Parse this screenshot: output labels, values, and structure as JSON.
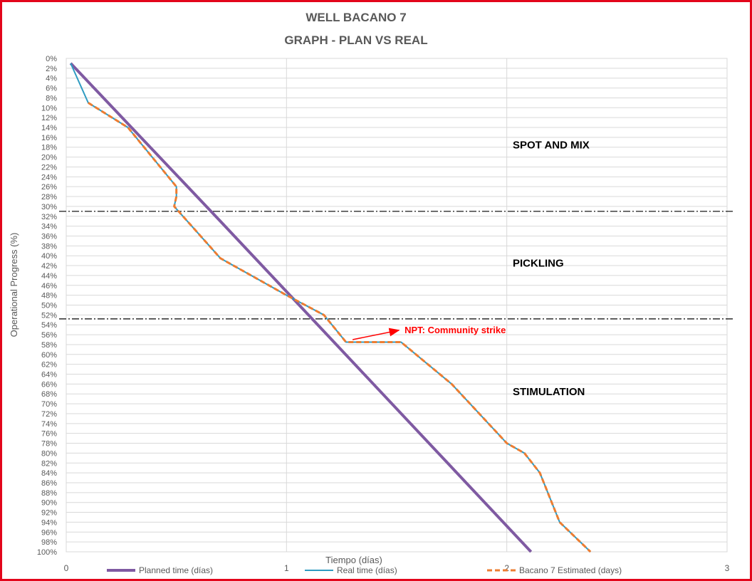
{
  "chart_data": {
    "type": "line",
    "title": [
      "WELL BACANO 7",
      "GRAPH  - PLAN VS REAL"
    ],
    "xlabel": "Tiempo (días)",
    "ylabel": "Operational Progress (%)",
    "xlim": [
      0,
      3
    ],
    "ylim": [
      0,
      100
    ],
    "y_inverted": true,
    "x_ticks": [
      "0",
      "1",
      "2",
      "3"
    ],
    "y_ticks": [
      "0%",
      "2%",
      "4%",
      "6%",
      "8%",
      "10%",
      "12%",
      "14%",
      "16%",
      "18%",
      "20%",
      "22%",
      "24%",
      "26%",
      "28%",
      "30%",
      "32%",
      "34%",
      "36%",
      "38%",
      "40%",
      "42%",
      "44%",
      "46%",
      "48%",
      "50%",
      "52%",
      "54%",
      "56%",
      "58%",
      "60%",
      "62%",
      "64%",
      "66%",
      "68%",
      "70%",
      "72%",
      "74%",
      "76%",
      "78%",
      "80%",
      "82%",
      "84%",
      "86%",
      "88%",
      "90%",
      "92%",
      "94%",
      "96%",
      "98%",
      "100%"
    ],
    "grid": true,
    "legend_position": "bottom",
    "series": [
      {
        "name": "Planned time (días)",
        "color": "#7f5aa2",
        "style": "solid",
        "x": [
          0.02,
          0.7,
          2.11
        ],
        "y": [
          1,
          33,
          100
        ]
      },
      {
        "name": "Real time (días)",
        "color": "#2f9bc1",
        "style": "solid",
        "x": [
          0.02,
          0.1,
          0.28,
          0.5,
          0.5,
          0.49,
          0.7,
          1.0,
          1.17,
          1.27,
          1.52,
          1.75,
          2.0,
          2.08,
          2.15,
          2.24,
          2.38
        ],
        "y": [
          1,
          9,
          14,
          26,
          28,
          30,
          40.5,
          48,
          52,
          57.5,
          57.5,
          66,
          78,
          80,
          84,
          94,
          100
        ]
      },
      {
        "name": "Bacano 7 Estimated (days)",
        "color": "#ed7d31",
        "style": "dashed",
        "x": [
          0.1,
          0.28,
          0.5,
          0.5,
          0.49,
          0.7,
          1.0,
          1.17,
          1.27,
          1.52,
          1.75,
          2.0,
          2.08,
          2.15,
          2.24,
          2.38
        ],
        "y": [
          9,
          14,
          26,
          28,
          30,
          40.5,
          48,
          52,
          57.5,
          57.5,
          66,
          78,
          80,
          84,
          94,
          100
        ]
      }
    ],
    "reference_lines": [
      {
        "y": 31,
        "style": "dash-dot",
        "color": "#000000"
      },
      {
        "y": 52.8,
        "style": "dash-dot",
        "color": "#000000"
      }
    ],
    "zone_labels": [
      "SPOT AND MIX",
      "PICKLING",
      "STIMULATION"
    ],
    "zone_label_y": [
      17.5,
      41.5,
      67.5
    ],
    "annotation": {
      "text": "NPT: Community strike",
      "arrow_from": [
        1.3,
        57
      ],
      "arrow_to": [
        1.51,
        55.1
      ]
    }
  }
}
